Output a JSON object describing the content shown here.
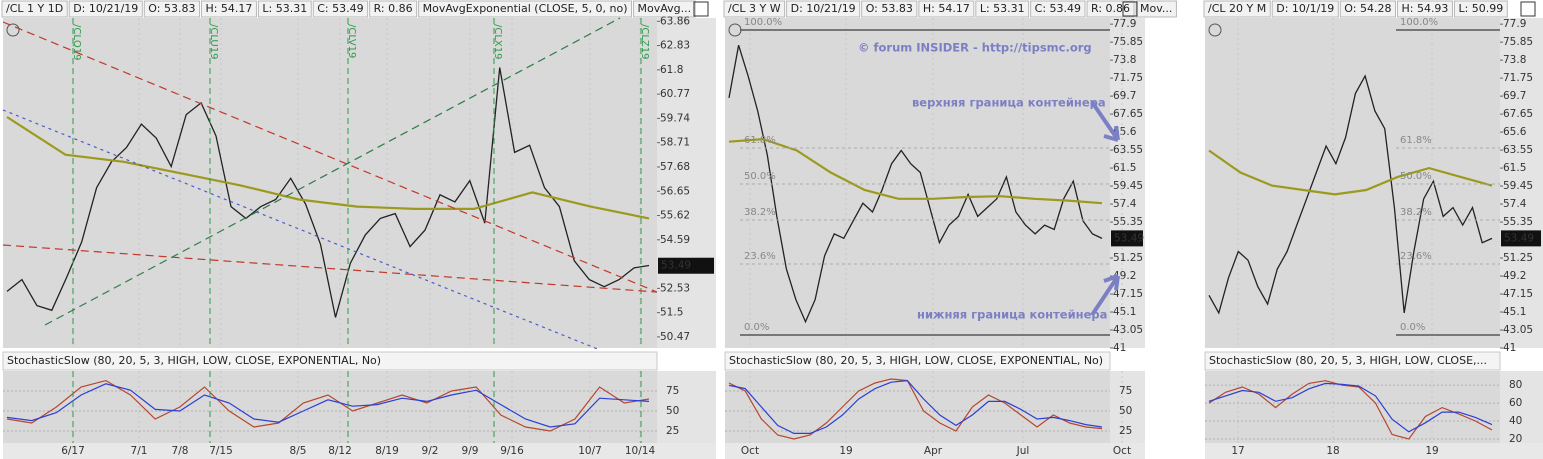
{
  "panels": [
    {
      "header": [
        {
          "text": "/CL 1 Y 1D",
          "color": "#111"
        },
        {
          "text": "D: 10/21/19",
          "color": "#222"
        },
        {
          "text": "O: 53.83",
          "color": "#222"
        },
        {
          "text": "H: 54.17",
          "color": "#222"
        },
        {
          "text": "L: 53.31",
          "color": "#222"
        },
        {
          "text": "C: 53.49",
          "color": "#222"
        },
        {
          "text": "R: 0.86",
          "color": "#222"
        },
        {
          "text": "MovAvgExponential (CLOSE, 5, 0, no)",
          "color": "#c0392b"
        },
        {
          "text": "MovAvg...",
          "color": "#9c9a1e"
        }
      ],
      "price": {
        "ylim": [
          50.0,
          64.0
        ],
        "yticks": [
          63.86,
          62.83,
          61.8,
          60.77,
          59.74,
          58.71,
          57.68,
          56.65,
          55.62,
          54.59,
          52.53,
          51.5,
          50.47
        ],
        "last": 53.49,
        "series": [
          {
            "color": "#222",
            "values": [
              52.4,
              52.9,
              51.8,
              51.6,
              53.0,
              54.5,
              56.8,
              57.9,
              58.5,
              59.5,
              58.9,
              57.7,
              59.9,
              60.4,
              59.0,
              56.0,
              55.5,
              56.0,
              56.3,
              57.2,
              56.1,
              54.4,
              51.3,
              53.6,
              54.8,
              55.5,
              55.7,
              54.3,
              55.0,
              56.5,
              56.2,
              57.1,
              55.3,
              61.9,
              58.3,
              58.6,
              56.8,
              56.0,
              53.7,
              52.9,
              52.6,
              52.9,
              53.4,
              53.5
            ]
          },
          {
            "color": "#9c9a1e",
            "values": [
              59.8,
              58.2,
              57.9,
              57.4,
              56.9,
              56.3,
              56.0,
              55.9,
              55.9,
              56.6,
              56.0,
              55.5
            ]
          }
        ]
      },
      "contracts": [
        "/CLQ19",
        "/CLU19",
        "/CLV19",
        "/CLX19",
        "/CLZ19"
      ],
      "stoch": {
        "label": "StochasticSlow (80, 20, 5, 3, HIGH, LOW, CLOSE, EXPONENTIAL, No)",
        "ylim": [
          10,
          100
        ],
        "yticks": [
          75,
          50,
          25
        ],
        "series": [
          {
            "color": "#b5472f",
            "values": [
              40,
              35,
              55,
              80,
              88,
              70,
              40,
              55,
              80,
              50,
              30,
              35,
              60,
              70,
              50,
              60,
              70,
              60,
              75,
              80,
              45,
              30,
              25,
              40,
              80,
              60,
              65
            ]
          },
          {
            "color": "#2b3fd6",
            "values": [
              42,
              38,
              48,
              70,
              84,
              76,
              52,
              50,
              70,
              60,
              40,
              36,
              50,
              64,
              56,
              58,
              66,
              62,
              70,
              76,
              58,
              40,
              30,
              34,
              66,
              64,
              62
            ]
          }
        ]
      },
      "xlabels": [
        "6/17",
        "7/1",
        "7/8",
        "7/15",
        "8/5",
        "8/12",
        "8/19",
        "9/2",
        "9/9",
        "9/16",
        "10/7",
        "10/14"
      ]
    },
    {
      "header": [
        {
          "text": "/CL 3 Y W",
          "color": "#111"
        },
        {
          "text": "D: 10/21/19",
          "color": "#222"
        },
        {
          "text": "O: 53.83",
          "color": "#222"
        },
        {
          "text": "H: 54.17",
          "color": "#222"
        },
        {
          "text": "L: 53.31",
          "color": "#222"
        },
        {
          "text": "C: 53.49",
          "color": "#222"
        },
        {
          "text": "R: 0.86",
          "color": "#222"
        },
        {
          "text": "Mov...",
          "color": "#c0392b"
        }
      ],
      "price": {
        "ylim": [
          41,
          78.6
        ],
        "yticks": [
          77.9,
          75.85,
          73.8,
          71.75,
          69.7,
          67.65,
          65.6,
          63.55,
          61.5,
          59.45,
          57.4,
          55.35,
          51.25,
          49.2,
          47.15,
          45.1,
          43.05,
          41
        ],
        "last": 53.49,
        "series": [
          {
            "color": "#222",
            "values": [
              69.5,
              75.5,
              72.0,
              68.0,
              63.0,
              56.0,
              50.0,
              46.5,
              44.0,
              46.5,
              51.5,
              54.0,
              53.5,
              55.5,
              57.5,
              56.5,
              59.0,
              62.0,
              63.5,
              62.0,
              61.0,
              57.0,
              53.0,
              55.0,
              56.0,
              58.5,
              56.0,
              57.0,
              58.0,
              60.5,
              56.5,
              55.0,
              54.0,
              55.0,
              54.5,
              58.0,
              60.0,
              55.5,
              54.0,
              53.49
            ]
          },
          {
            "color": "#9c9a1e",
            "values": [
              64.5,
              64.8,
              63.5,
              61.0,
              59.0,
              58.0,
              58.0,
              58.2,
              58.3,
              58.0,
              57.8,
              57.5
            ]
          }
        ]
      },
      "fib": [
        "100.0%",
        "61.8%",
        "50.0%",
        "38.2%",
        "23.6%",
        "0.0%"
      ],
      "annotations": [
        "© forum INSIDER - http://tipsmc.org",
        "верхняя граница контейнера",
        "нижняя граница контейнера"
      ],
      "stoch": {
        "label": "StochasticSlow (80, 20, 5, 3, HIGH, LOW, CLOSE, EXPONENTIAL, No)",
        "ylim": [
          10,
          100
        ],
        "yticks": [
          75,
          50,
          25
        ],
        "series": [
          {
            "color": "#b5472f",
            "values": [
              85,
              75,
              40,
              20,
              15,
              20,
              35,
              55,
              75,
              85,
              90,
              88,
              50,
              35,
              25,
              55,
              70,
              60,
              45,
              30,
              45,
              35,
              30,
              28
            ]
          },
          {
            "color": "#2b3fd6",
            "values": [
              82,
              78,
              55,
              32,
              22,
              22,
              30,
              45,
              65,
              78,
              86,
              88,
              65,
              45,
              32,
              45,
              62,
              62,
              52,
              40,
              42,
              38,
              33,
              30
            ]
          }
        ]
      },
      "xlabels": [
        "Oct",
        "19",
        "Apr",
        "Jul",
        "Oct"
      ]
    },
    {
      "header": [
        {
          "text": "/CL 20 Y M",
          "color": "#111"
        },
        {
          "text": "D: 10/1/19",
          "color": "#222"
        },
        {
          "text": "O: 54.28",
          "color": "#222"
        },
        {
          "text": "H: 54.93",
          "color": "#222"
        },
        {
          "text": "L: 50.99",
          "color": "#222"
        }
      ],
      "price": {
        "ylim": [
          41,
          78.6
        ],
        "yticks": [
          77.9,
          75.85,
          73.8,
          71.75,
          69.7,
          67.65,
          65.6,
          63.55,
          61.5,
          59.45,
          57.4,
          55.35,
          51.25,
          49.2,
          47.15,
          45.1,
          43.05,
          41
        ],
        "last": 53.49,
        "series": [
          {
            "color": "#222",
            "values": [
              47,
              45,
              49,
              52,
              51,
              48,
              46,
              50,
              52,
              55,
              58,
              61,
              64,
              62,
              65,
              70,
              72,
              68,
              66,
              57,
              45,
              52,
              58,
              60,
              56,
              57,
              55,
              57,
              53,
              53.49
            ]
          },
          {
            "color": "#9c9a1e",
            "values": [
              63.5,
              61.0,
              59.5,
              59.0,
              58.5,
              59.0,
              60.5,
              61.5,
              60.5,
              59.5
            ]
          }
        ]
      },
      "fib": [
        "100.0%",
        "61.8%",
        "50.0%",
        "38.2%",
        "23.6%",
        "0.0%"
      ],
      "stoch": {
        "label": "StochasticSlow (80, 20, 5, 3, HIGH, LOW, CLOSE,...",
        "ylim": [
          15.5,
          95.8
        ],
        "yticks": [
          80,
          60,
          40,
          20
        ],
        "series": [
          {
            "color": "#b5472f",
            "values": [
              60,
              72,
              78,
              70,
              55,
              70,
              82,
              85,
              80,
              78,
              60,
              25,
              20,
              45,
              55,
              48,
              40,
              30
            ]
          },
          {
            "color": "#2b3fd6",
            "values": [
              62,
              68,
              74,
              72,
              62,
              66,
              76,
              82,
              81,
              79,
              68,
              42,
              28,
              38,
              50,
              50,
              44,
              36
            ]
          }
        ]
      },
      "xlabels": [
        "17",
        "18",
        "19"
      ]
    }
  ]
}
